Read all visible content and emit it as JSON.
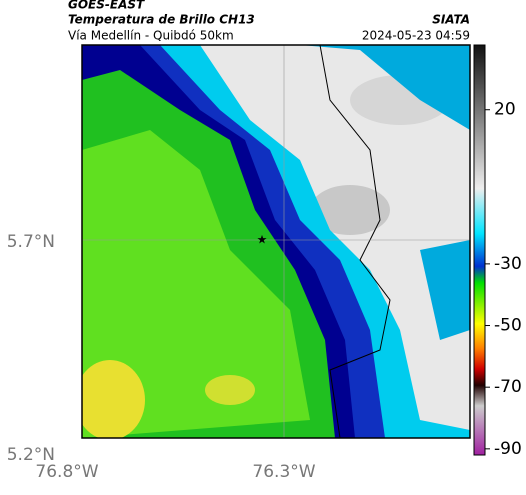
{
  "header": {
    "source": "GOES-EAST",
    "title": "Temperatura de Brillo CH13",
    "brand": "SIATA",
    "subtitle": "Vía Medellín - Quibdó 50km",
    "timestamp": "2024-05-23 04:59"
  },
  "axes": {
    "y_ticks": [
      "5.7°N",
      "5.2°N"
    ],
    "x_ticks": [
      "76.8°W",
      "76.3°W"
    ]
  },
  "colorbar": {
    "lim": [
      -92,
      41
    ],
    "ticks": [
      20,
      -30,
      -50,
      -70,
      -90
    ]
  }
}
